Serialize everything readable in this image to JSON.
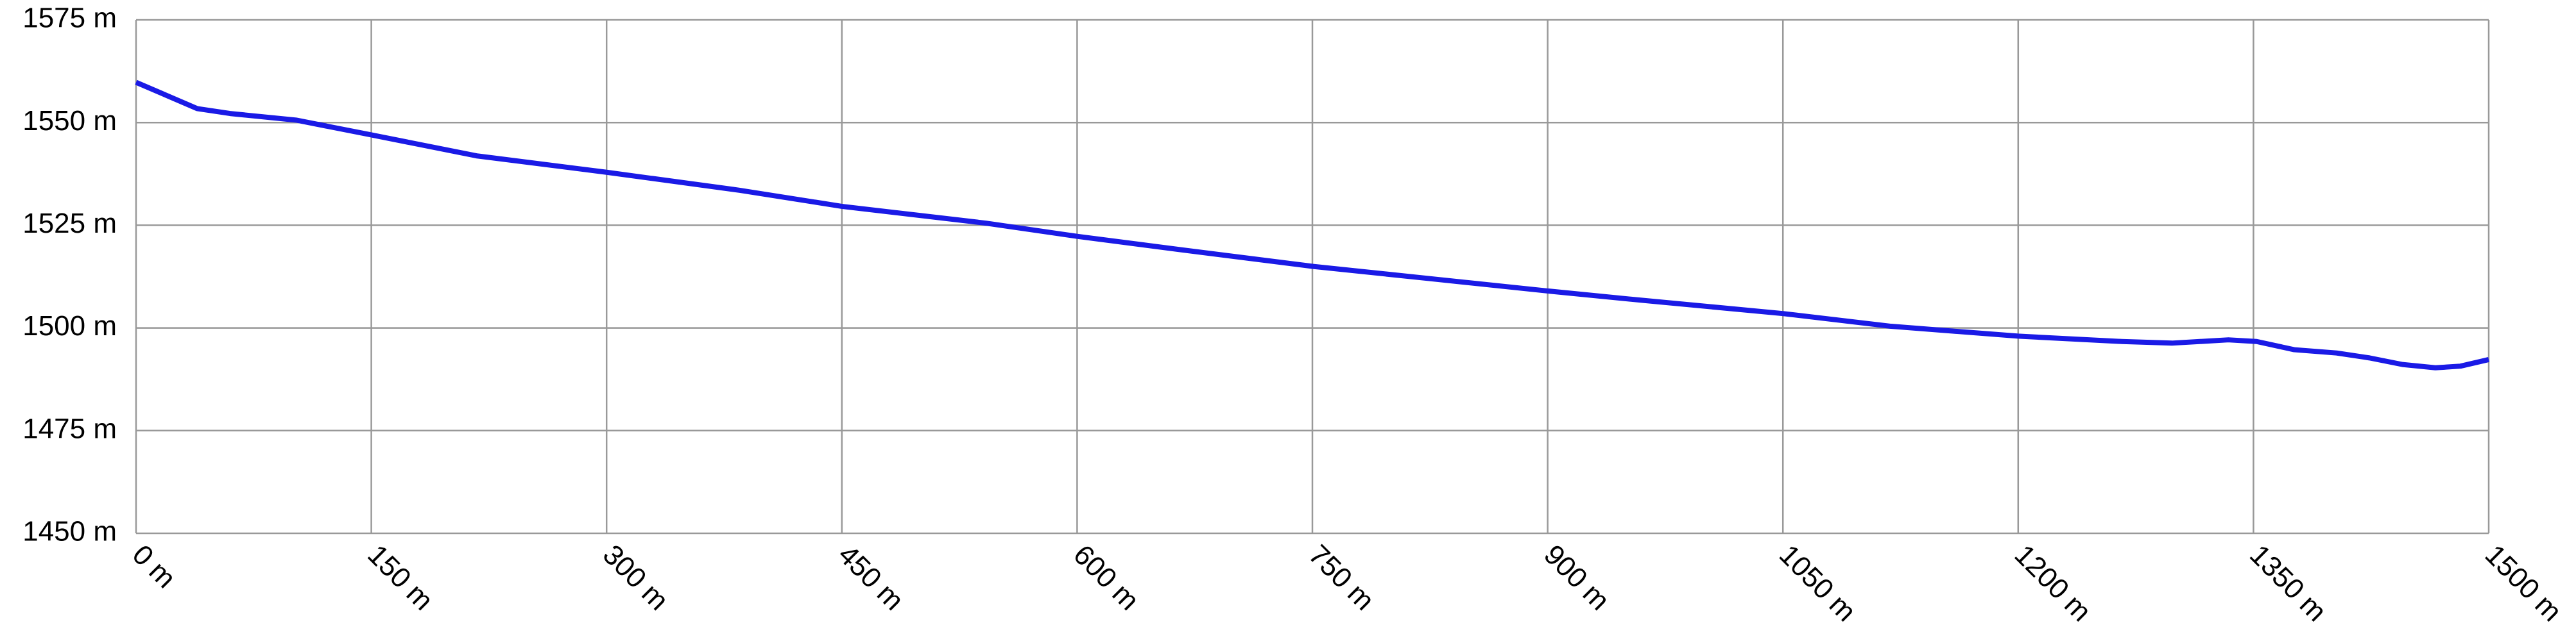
{
  "chart_data": {
    "type": "line",
    "x": [
      0,
      39,
      60,
      102,
      150,
      217,
      300,
      385,
      450,
      542,
      600,
      667,
      750,
      825,
      900,
      961,
      1050,
      1119,
      1200,
      1266,
      1298,
      1334,
      1352,
      1376,
      1403,
      1424,
      1445,
      1466,
      1482,
      1500
    ],
    "values": [
      1559.8,
      1553.4,
      1552.2,
      1550.6,
      1547,
      1541.9,
      1537.9,
      1533.5,
      1529.6,
      1525.5,
      1522.3,
      1519,
      1515,
      1512,
      1509,
      1506.7,
      1503.5,
      1500.4,
      1498,
      1496.7,
      1496.3,
      1497.1,
      1496.7,
      1494.7,
      1493.9,
      1492.7,
      1491.1,
      1490.3,
      1490.7,
      1492.3
    ],
    "color": "#1a1ae6",
    "xlim": [
      0,
      1500
    ],
    "xticks": [
      {
        "value": 0,
        "label": "0 m"
      },
      {
        "value": 150,
        "label": "150 m"
      },
      {
        "value": 300,
        "label": "300 m"
      },
      {
        "value": 450,
        "label": "450 m"
      },
      {
        "value": 600,
        "label": "600 m"
      },
      {
        "value": 750,
        "label": "750 m"
      },
      {
        "value": 900,
        "label": "900 m"
      },
      {
        "value": 1050,
        "label": "1050 m"
      },
      {
        "value": 1200,
        "label": "1200 m"
      },
      {
        "value": 1350,
        "label": "1350 m"
      },
      {
        "value": 1500,
        "label": "1500 m"
      }
    ],
    "ylim": [
      1450,
      1575
    ],
    "yticks": [
      {
        "value": 1450,
        "label": "1450 m"
      },
      {
        "value": 1475,
        "label": "1475 m"
      },
      {
        "value": 1500,
        "label": "1500 m"
      },
      {
        "value": 1525,
        "label": "1525 m"
      },
      {
        "value": 1550,
        "label": "1550 m"
      },
      {
        "value": 1575,
        "label": "1575 m"
      }
    ],
    "grid": true
  }
}
